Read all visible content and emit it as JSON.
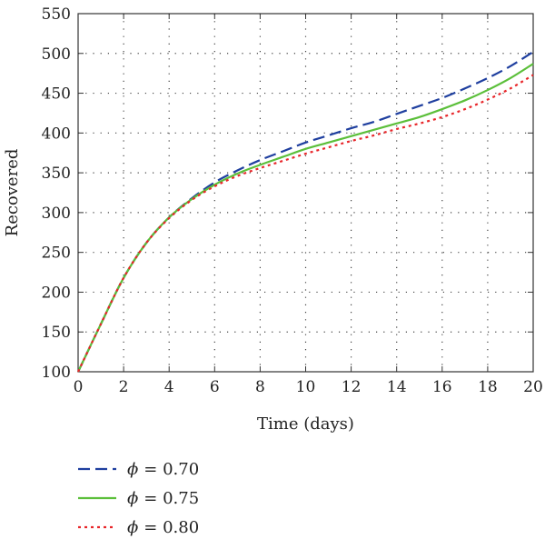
{
  "chart_data": {
    "type": "line",
    "title": "",
    "xlabel": "Time (days)",
    "ylabel": "Recovered",
    "xlim": [
      0,
      20
    ],
    "ylim": [
      100,
      550
    ],
    "xticks": [
      0,
      2,
      4,
      6,
      8,
      10,
      12,
      14,
      16,
      18,
      20
    ],
    "yticks": [
      100,
      150,
      200,
      250,
      300,
      350,
      400,
      450,
      500,
      550
    ],
    "grid": true,
    "legend_position": "bottom-left-below",
    "x": [
      0,
      1,
      2,
      3,
      4,
      5,
      6,
      7,
      8,
      9,
      10,
      11,
      12,
      13,
      14,
      15,
      16,
      17,
      18,
      19,
      20
    ],
    "series": [
      {
        "symbol": "ϕ",
        "legend_value": "= 0.70",
        "color": "#1f3f9f",
        "dash": "dashed",
        "values": [
          100,
          160,
          218,
          262,
          294,
          318,
          338,
          353,
          366,
          377,
          388,
          397,
          406,
          414,
          424,
          434,
          444,
          456,
          469,
          484,
          502
        ]
      },
      {
        "symbol": "ϕ",
        "legend_value": "= 0.75",
        "color": "#5bbf3a",
        "dash": "solid",
        "values": [
          100,
          160,
          218,
          262,
          294,
          317,
          335,
          349,
          360,
          370,
          380,
          388,
          396,
          404,
          412,
          420,
          430,
          441,
          454,
          469,
          487
        ]
      },
      {
        "symbol": "ϕ",
        "legend_value": "= 0.80",
        "color": "#e8262a",
        "dash": "dotted",
        "values": [
          100,
          160,
          218,
          262,
          293,
          316,
          333,
          346,
          356,
          365,
          374,
          382,
          390,
          397,
          405,
          412,
          420,
          430,
          442,
          456,
          473
        ]
      }
    ]
  }
}
